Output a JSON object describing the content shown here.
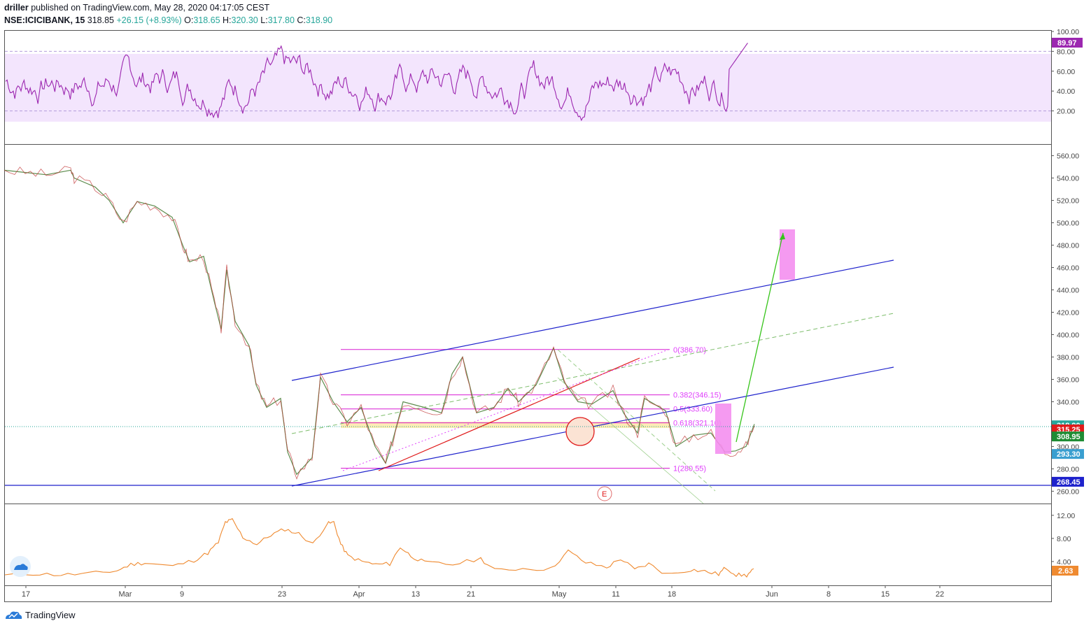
{
  "header": {
    "author": "driller",
    "published": "published on TradingView.com, May 28, 2020 04:17:05 CEST",
    "symbol": "NSE:ICICIBANK, 15",
    "last": "318.85",
    "change": "+26.15 (+8.93%)",
    "o_label": "O:",
    "o": "318.65",
    "h_label": "H:",
    "h": "320.30",
    "l_label": "L:",
    "l": "317.80",
    "c_label": "C:",
    "c": "318.90"
  },
  "brand": {
    "name": "TradingView",
    "logo_icon": "tradingview-cloud-icon"
  },
  "colors": {
    "up": "#26a69a",
    "down": "#ef5350",
    "rsi": "#9c27b0",
    "rsi_band": "#f3e5fd",
    "channel": "#1e22cc",
    "fib": "#e040fb",
    "atr": "#ef8a30",
    "target_box": "#f48fef"
  },
  "chart_data": [
    {
      "type": "line",
      "name": "rsi-pane",
      "yticks": [
        "100.00",
        "80.00",
        "60.00",
        "40.00",
        "20.00"
      ],
      "ylim": [
        0,
        100
      ],
      "band": [
        20,
        80
      ],
      "last_value": "89.97",
      "last_value_num": 89.97
    },
    {
      "type": "line",
      "name": "price-pane",
      "yticks": [
        "560.00",
        "540.00",
        "520.00",
        "500.00",
        "480.00",
        "460.00",
        "440.00",
        "420.00",
        "400.00",
        "380.00",
        "360.00",
        "340.00",
        "320.00",
        "300.00",
        "280.00",
        "260.00"
      ],
      "ylim": [
        254,
        566
      ],
      "x_ticks": [
        "17",
        "Mar",
        "9",
        "23",
        "Apr",
        "13",
        "21",
        "May",
        "11",
        "18",
        "Jun",
        "8",
        "15",
        "22"
      ],
      "price_path": [
        [
          0,
          547
        ],
        [
          30,
          545
        ],
        [
          60,
          543
        ],
        [
          95,
          547
        ],
        [
          100,
          540
        ],
        [
          130,
          532
        ],
        [
          150,
          520
        ],
        [
          170,
          500
        ],
        [
          190,
          519
        ],
        [
          215,
          515
        ],
        [
          240,
          505
        ],
        [
          255,
          480
        ],
        [
          265,
          465
        ],
        [
          285,
          470
        ],
        [
          300,
          430
        ],
        [
          310,
          405
        ],
        [
          318,
          458
        ],
        [
          330,
          412
        ],
        [
          350,
          390
        ],
        [
          360,
          355
        ],
        [
          375,
          335
        ],
        [
          395,
          343
        ],
        [
          405,
          295
        ],
        [
          418,
          275
        ],
        [
          440,
          290
        ],
        [
          452,
          362
        ],
        [
          470,
          340
        ],
        [
          490,
          322
        ],
        [
          510,
          335
        ],
        [
          530,
          300
        ],
        [
          545,
          285
        ],
        [
          555,
          305
        ],
        [
          570,
          340
        ],
        [
          600,
          335
        ],
        [
          625,
          330
        ],
        [
          640,
          365
        ],
        [
          655,
          380
        ],
        [
          675,
          330
        ],
        [
          700,
          335
        ],
        [
          720,
          352
        ],
        [
          735,
          340
        ],
        [
          760,
          355
        ],
        [
          785,
          388
        ],
        [
          800,
          358
        ],
        [
          820,
          340
        ],
        [
          840,
          338
        ],
        [
          870,
          350
        ],
        [
          885,
          330
        ],
        [
          905,
          312
        ],
        [
          915,
          343
        ],
        [
          945,
          332
        ],
        [
          960,
          300
        ],
        [
          985,
          310
        ],
        [
          1010,
          312
        ],
        [
          1030,
          295
        ],
        [
          1045,
          296
        ],
        [
          1060,
          300
        ],
        [
          1072,
          320
        ]
      ],
      "fib_levels": [
        {
          "label": "0(386.70)",
          "value": 386.7
        },
        {
          "label": "0.382(346.15)",
          "value": 346.15
        },
        {
          "label": "0.5(333.60)",
          "value": 333.6
        },
        {
          "label": "0.618(321.10)",
          "value": 321.1
        },
        {
          "label": "1(280.55)",
          "value": 280.55
        }
      ],
      "price_labels": [
        {
          "value": "318.90",
          "num": 318.9,
          "color": "#26a69a"
        },
        {
          "value": "315.25",
          "num": 315.25,
          "color": "#e01b1b"
        },
        {
          "value": "308.95",
          "num": 308.95,
          "color": "#1f8c34"
        },
        {
          "value": "293.30",
          "num": 293.3,
          "color": "#3a9fd0"
        },
        {
          "value": "268.45",
          "num": 268.45,
          "color": "#1e22cc"
        }
      ],
      "marker": "E"
    },
    {
      "type": "line",
      "name": "atr-pane",
      "yticks": [
        "12.00",
        "8.00",
        "4.00"
      ],
      "ylim": [
        0,
        13.8
      ],
      "last_value": "2.63",
      "last_value_num": 2.63,
      "atr_path": [
        [
          0,
          1.7
        ],
        [
          40,
          1.9
        ],
        [
          80,
          1.7
        ],
        [
          120,
          1.9
        ],
        [
          160,
          2.4
        ],
        [
          180,
          3.5
        ],
        [
          200,
          3.8
        ],
        [
          240,
          3.2
        ],
        [
          270,
          4.2
        ],
        [
          290,
          5.5
        ],
        [
          305,
          7.3
        ],
        [
          315,
          10.8
        ],
        [
          325,
          11.2
        ],
        [
          340,
          8.2
        ],
        [
          360,
          7.0
        ],
        [
          380,
          8.6
        ],
        [
          400,
          9.6
        ],
        [
          420,
          8.8
        ],
        [
          440,
          7.0
        ],
        [
          460,
          10.5
        ],
        [
          470,
          10.8
        ],
        [
          480,
          7.0
        ],
        [
          490,
          5.0
        ],
        [
          510,
          4.0
        ],
        [
          530,
          3.5
        ],
        [
          550,
          3.6
        ],
        [
          565,
          6.5
        ],
        [
          580,
          5.0
        ],
        [
          600,
          3.8
        ],
        [
          640,
          3.5
        ],
        [
          680,
          4.5
        ],
        [
          700,
          2.5
        ],
        [
          740,
          2.8
        ],
        [
          780,
          2.7
        ],
        [
          805,
          5.8
        ],
        [
          830,
          3.8
        ],
        [
          860,
          3.0
        ],
        [
          880,
          4.5
        ],
        [
          900,
          2.6
        ],
        [
          920,
          3.6
        ],
        [
          945,
          1.8
        ],
        [
          980,
          2.6
        ],
        [
          1000,
          2.3
        ],
        [
          1020,
          1.8
        ],
        [
          1030,
          3.0
        ],
        [
          1045,
          1.7
        ],
        [
          1060,
          1.6
        ],
        [
          1070,
          2.6
        ]
      ]
    }
  ]
}
